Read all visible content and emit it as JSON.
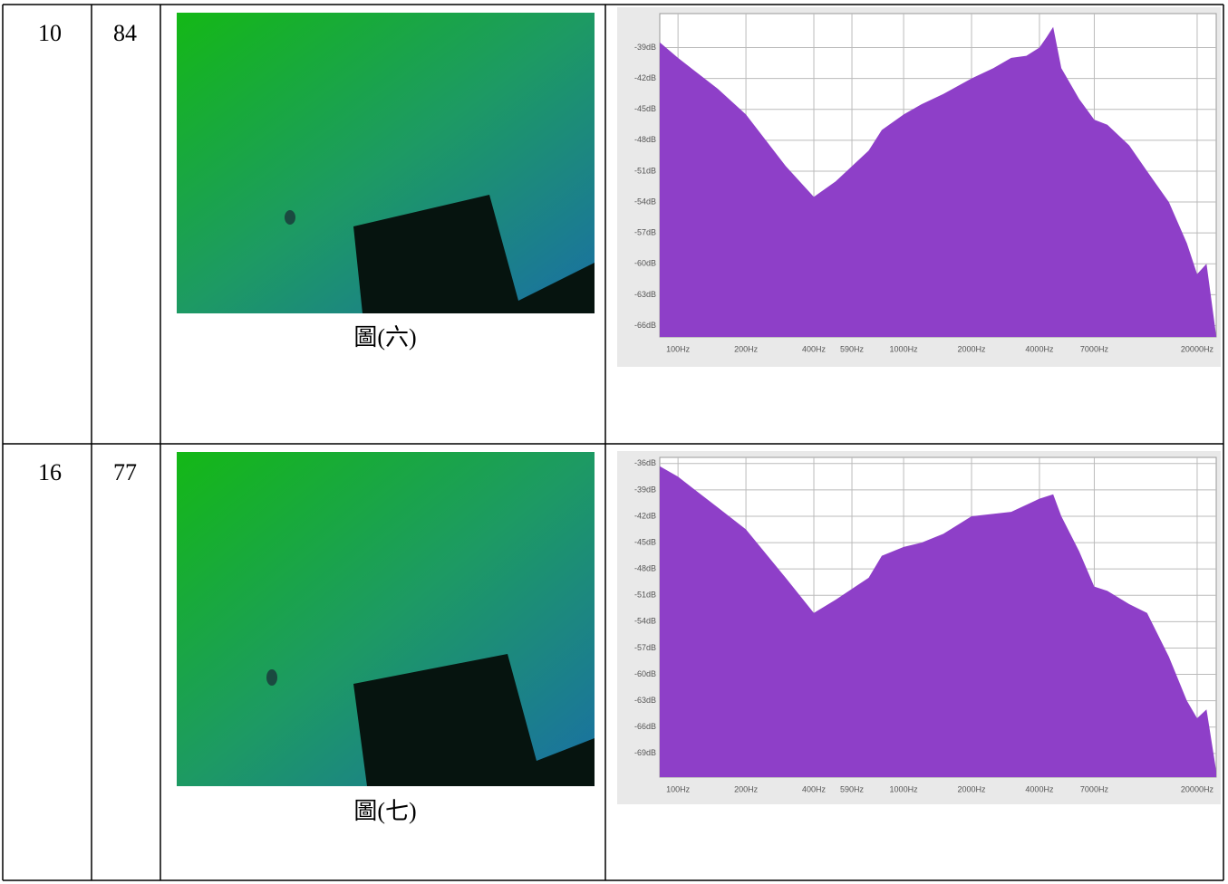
{
  "table": {
    "rows": [
      {
        "cells": [
          "10",
          "84"
        ],
        "caption": "圖(六)",
        "spectrum": {
          "type": "area",
          "color": "#8e3fc8",
          "log_x": true,
          "grid": true,
          "x": [
            83,
            100,
            150,
            200,
            300,
            400,
            500,
            700,
            800,
            1000,
            1200,
            1500,
            2000,
            2500,
            3000,
            3500,
            4000,
            4300,
            4600,
            5000,
            6000,
            7000,
            8000,
            10000,
            12000,
            15000,
            18000,
            20000,
            22000,
            24300
          ],
          "values": [
            -38.5,
            -40,
            -43,
            -45.5,
            -50.5,
            -53.5,
            -52,
            -49,
            -47,
            -45.5,
            -44.5,
            -43.5,
            -42,
            -41,
            -40,
            -39.8,
            -39,
            -38,
            -37,
            -41,
            -44,
            -46,
            -46.5,
            -48.5,
            -51,
            -54,
            -58,
            -61,
            -60,
            -67
          ],
          "xlim": [
            83,
            24300
          ],
          "ylim": [
            -67.1,
            -35.7
          ],
          "xticks": [
            {
              "value": 100,
              "label": "100Hz"
            },
            {
              "value": 200,
              "label": "200Hz"
            },
            {
              "value": 400,
              "label": "400Hz"
            },
            {
              "value": 590,
              "label": "590Hz"
            },
            {
              "value": 1000,
              "label": "1000Hz"
            },
            {
              "value": 2000,
              "label": "2000Hz"
            },
            {
              "value": 4000,
              "label": "4000Hz"
            },
            {
              "value": 7000,
              "label": "7000Hz"
            },
            {
              "value": 20000,
              "label": "20000Hz"
            }
          ],
          "yticks": [
            {
              "value": -39,
              "label": "-39dB"
            },
            {
              "value": -42,
              "label": "-42dB"
            },
            {
              "value": -45,
              "label": "-45dB"
            },
            {
              "value": -48,
              "label": "-48dB"
            },
            {
              "value": -51,
              "label": "-51dB"
            },
            {
              "value": -54,
              "label": "-54dB"
            },
            {
              "value": -57,
              "label": "-57dB"
            },
            {
              "value": -60,
              "label": "-60dB"
            },
            {
              "value": -63,
              "label": "-63dB"
            },
            {
              "value": -66,
              "label": "-66dB"
            }
          ]
        }
      },
      {
        "cells": [
          "16",
          "77"
        ],
        "caption": "圖(七)",
        "spectrum": {
          "type": "area",
          "color": "#8e3fc8",
          "log_x": true,
          "grid": true,
          "x": [
            83,
            100,
            150,
            200,
            300,
            400,
            500,
            700,
            800,
            1000,
            1200,
            1500,
            2000,
            3000,
            4000,
            4600,
            5000,
            6000,
            7000,
            8000,
            10000,
            12000,
            15000,
            18000,
            20000,
            22000,
            24300
          ],
          "values": [
            -36.3,
            -37.5,
            -41,
            -43.5,
            -49,
            -53,
            -51.5,
            -49,
            -46.5,
            -45.5,
            -45,
            -44,
            -42,
            -41.5,
            -40,
            -39.5,
            -42,
            -46,
            -50,
            -50.5,
            -52,
            -53,
            -58,
            -63,
            -65,
            -64,
            -71
          ],
          "xlim": [
            83,
            24300
          ],
          "ylim": [
            -71.7,
            -35.3
          ],
          "xticks": [
            {
              "value": 100,
              "label": "100Hz"
            },
            {
              "value": 200,
              "label": "200Hz"
            },
            {
              "value": 400,
              "label": "400Hz"
            },
            {
              "value": 590,
              "label": "590Hz"
            },
            {
              "value": 1000,
              "label": "1000Hz"
            },
            {
              "value": 2000,
              "label": "2000Hz"
            },
            {
              "value": 4000,
              "label": "4000Hz"
            },
            {
              "value": 7000,
              "label": "7000Hz"
            },
            {
              "value": 20000,
              "label": "20000Hz"
            }
          ],
          "yticks": [
            {
              "value": -36,
              "label": "-36dB"
            },
            {
              "value": -39,
              "label": "-39dB"
            },
            {
              "value": -42,
              "label": "-42dB"
            },
            {
              "value": -45,
              "label": "-45dB"
            },
            {
              "value": -48,
              "label": "-48dB"
            },
            {
              "value": -51,
              "label": "-51dB"
            },
            {
              "value": -54,
              "label": "-54dB"
            },
            {
              "value": -57,
              "label": "-57dB"
            },
            {
              "value": -60,
              "label": "-60dB"
            },
            {
              "value": -63,
              "label": "-63dB"
            },
            {
              "value": -66,
              "label": "-66dB"
            },
            {
              "value": -69,
              "label": "-69dB"
            }
          ]
        }
      }
    ]
  }
}
